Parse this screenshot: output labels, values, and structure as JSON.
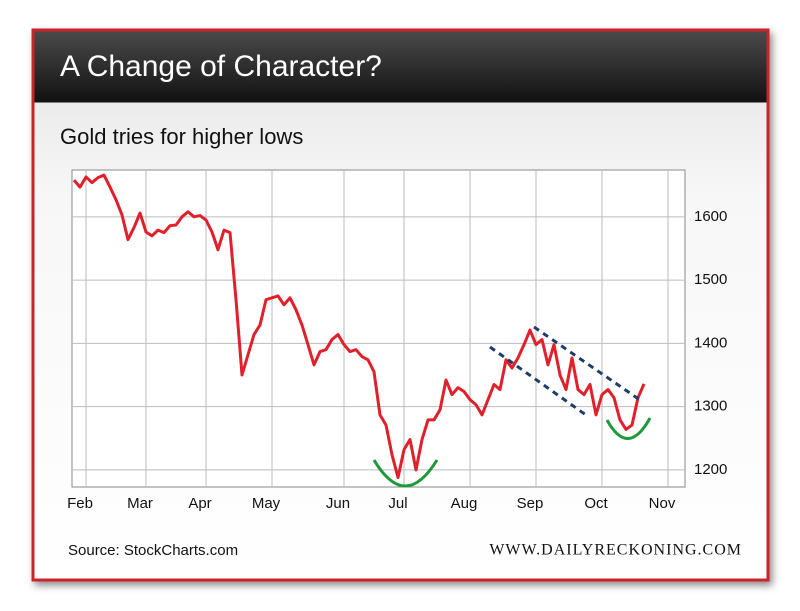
{
  "chart_data": {
    "type": "line",
    "title": "A Change of Character?",
    "subtitle": "Gold tries for higher lows",
    "source": "Source: StockCharts.com",
    "brand": "WWW.DAILYRECKONING.COM",
    "categories": [
      null,
      null,
      "Feb",
      null,
      null,
      null,
      null,
      null,
      null,
      null,
      null,
      null,
      "Mar",
      null,
      null,
      null,
      null,
      null,
      null,
      null,
      null,
      null,
      "Apr",
      null,
      null,
      null,
      null,
      null,
      null,
      null,
      null,
      null,
      null,
      "May",
      null,
      null,
      null,
      null,
      null,
      null,
      null,
      null,
      null,
      null,
      null,
      "Jun",
      null,
      null,
      null,
      null,
      null,
      null,
      null,
      null,
      null,
      "Jul",
      null,
      null,
      null,
      null,
      null,
      null,
      null,
      null,
      null,
      null,
      "Aug",
      null,
      null,
      null,
      null,
      null,
      null,
      null,
      null,
      null,
      null,
      "Sep",
      null,
      null,
      null,
      null,
      null,
      null,
      null,
      null,
      null,
      null,
      "Oct",
      null,
      null,
      null,
      null,
      null,
      null,
      null,
      null,
      null,
      null,
      "Nov"
    ],
    "series": [
      {
        "name": "Gold",
        "color": "#e0202a",
        "values": [
          1658,
          1647,
          1663,
          1654,
          1662,
          1666,
          1647,
          1627,
          1603,
          1564,
          1583,
          1606,
          1576,
          1570,
          1579,
          1575,
          1586,
          1587,
          1600,
          1608,
          1600,
          1602,
          1595,
          1576,
          1548,
          1579,
          1575,
          1469,
          1350,
          1382,
          1414,
          1429,
          1469,
          1472,
          1475,
          1461,
          1472,
          1453,
          1429,
          1398,
          1366,
          1387,
          1390,
          1406,
          1414,
          1398,
          1387,
          1390,
          1379,
          1374,
          1355,
          1287,
          1271,
          1224,
          1188,
          1232,
          1248,
          1200,
          1248,
          1279,
          1279,
          1295,
          1342,
          1319,
          1330,
          1324,
          1311,
          1303,
          1287,
          1311,
          1335,
          1327,
          1374,
          1361,
          1377,
          1398,
          1421,
          1398,
          1406,
          1366,
          1398,
          1350,
          1327,
          1377,
          1327,
          1319,
          1335,
          1287,
          1319,
          1327,
          1314,
          1279,
          1264,
          1271,
          1314,
          1336,
          null,
          null,
          null,
          null
        ]
      }
    ],
    "ylim": [
      1173,
      1674
    ],
    "yticks": [
      1200,
      1300,
      1400,
      1500,
      1600
    ],
    "grid": true
  }
}
